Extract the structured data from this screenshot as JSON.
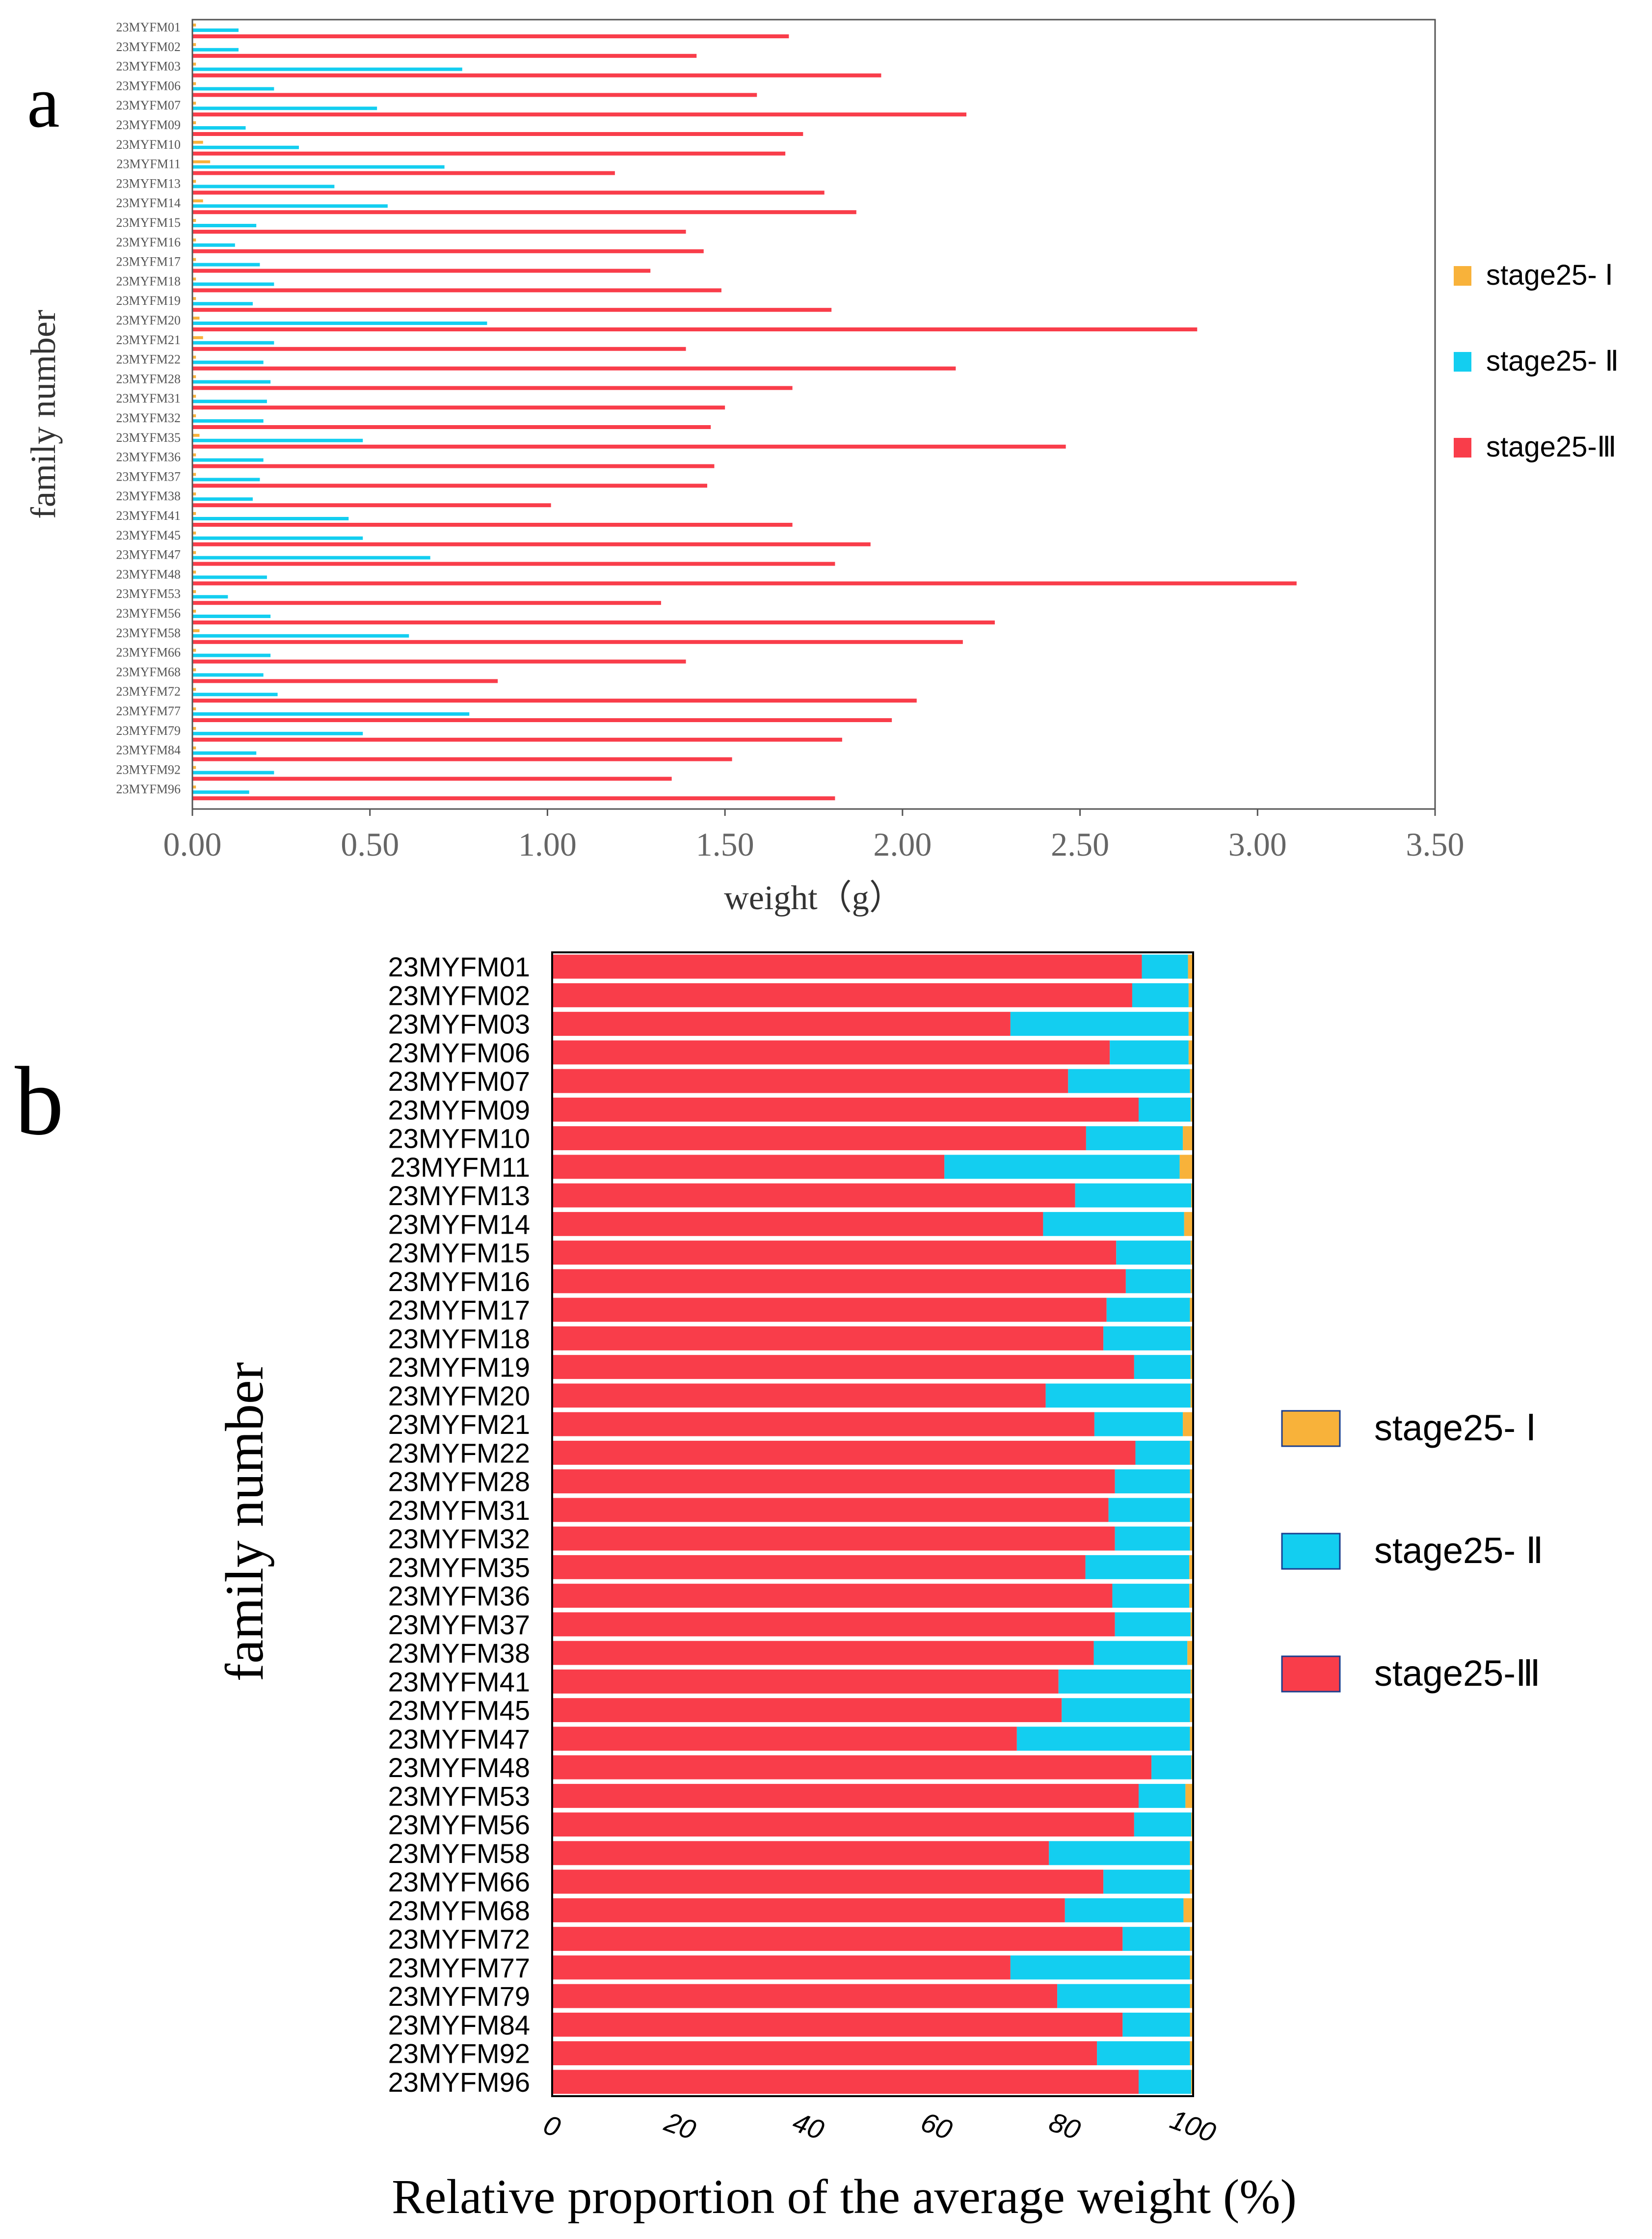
{
  "panel_labels": {
    "a": "a",
    "b": "b"
  },
  "colors": {
    "stage_i": "#F8B23A",
    "stage_ii": "#13CEF0",
    "stage_iii": "#F93D4A",
    "axis": "#000000"
  },
  "chart_data": [
    {
      "type": "bar",
      "orientation": "horizontal",
      "panel": "a",
      "title": "",
      "xlabel": "weight（g）",
      "ylabel": "family number",
      "xlim": [
        0,
        3.5
      ],
      "xticks": [
        "0.00",
        "0.50",
        "1.00",
        "1.50",
        "2.00",
        "2.50",
        "3.00",
        "3.50"
      ],
      "categories": [
        "23MYFM01",
        "23MYFM02",
        "23MYFM03",
        "23MYFM06",
        "23MYFM07",
        "23MYFM09",
        "23MYFM10",
        "23MYFM11",
        "23MYFM13",
        "23MYFM14",
        "23MYFM15",
        "23MYFM16",
        "23MYFM17",
        "23MYFM18",
        "23MYFM19",
        "23MYFM20",
        "23MYFM21",
        "23MYFM22",
        "23MYFM28",
        "23MYFM31",
        "23MYFM32",
        "23MYFM35",
        "23MYFM36",
        "23MYFM37",
        "23MYFM38",
        "23MYFM41",
        "23MYFM45",
        "23MYFM47",
        "23MYFM48",
        "23MYFM53",
        "23MYFM56",
        "23MYFM58",
        "23MYFM66",
        "23MYFM68",
        "23MYFM72",
        "23MYFM77",
        "23MYFM79",
        "23MYFM84",
        "23MYFM92",
        "23MYFM96"
      ],
      "legend_position": "right",
      "series": [
        {
          "name": "stage25- Ⅰ",
          "color": "#F8B23A",
          "values": [
            0.01,
            0.01,
            0.01,
            0.01,
            0.01,
            0.01,
            0.03,
            0.05,
            0.01,
            0.03,
            0.01,
            0.01,
            0.01,
            0.01,
            0.01,
            0.02,
            0.03,
            0.01,
            0.01,
            0.01,
            0.01,
            0.02,
            0.01,
            0.01,
            0.01,
            0.01,
            0.01,
            0.01,
            0.01,
            0.01,
            0.01,
            0.02,
            0.01,
            0.01,
            0.01,
            0.01,
            0.01,
            0.01,
            0.01,
            0.01
          ]
        },
        {
          "name": "stage25- Ⅱ",
          "color": "#13CEF0",
          "values": [
            0.13,
            0.13,
            0.76,
            0.23,
            0.52,
            0.15,
            0.3,
            0.71,
            0.4,
            0.55,
            0.18,
            0.12,
            0.19,
            0.23,
            0.17,
            0.83,
            0.23,
            0.2,
            0.22,
            0.21,
            0.2,
            0.48,
            0.2,
            0.19,
            0.17,
            0.44,
            0.48,
            0.67,
            0.21,
            0.1,
            0.22,
            0.61,
            0.22,
            0.2,
            0.24,
            0.78,
            0.48,
            0.18,
            0.23,
            0.16
          ]
        },
        {
          "name": "stage25-Ⅲ",
          "color": "#F93D4A",
          "values": [
            1.68,
            1.42,
            1.94,
            1.59,
            2.18,
            1.72,
            1.67,
            1.19,
            1.78,
            1.87,
            1.39,
            1.44,
            1.29,
            1.49,
            1.8,
            2.83,
            1.39,
            2.15,
            1.69,
            1.5,
            1.46,
            2.46,
            1.47,
            1.45,
            1.01,
            1.69,
            1.91,
            1.81,
            3.11,
            1.32,
            2.26,
            2.17,
            1.39,
            0.86,
            2.04,
            1.97,
            1.83,
            1.52,
            1.35,
            1.81
          ]
        }
      ]
    },
    {
      "type": "bar",
      "orientation": "horizontal",
      "stacked": true,
      "panel": "b",
      "title": "",
      "xlabel": "Relative proportion of the average weight (%)",
      "ylabel": "family number",
      "xlim": [
        0,
        100
      ],
      "xticks": [
        "0",
        "20",
        "40",
        "60",
        "80",
        "100"
      ],
      "categories": [
        "23MYFM01",
        "23MYFM02",
        "23MYFM03",
        "23MYFM06",
        "23MYFM07",
        "23MYFM09",
        "23MYFM10",
        "23MYFM11",
        "23MYFM13",
        "23MYFM14",
        "23MYFM15",
        "23MYFM16",
        "23MYFM17",
        "23MYFM18",
        "23MYFM19",
        "23MYFM20",
        "23MYFM21",
        "23MYFM22",
        "23MYFM28",
        "23MYFM31",
        "23MYFM32",
        "23MYFM35",
        "23MYFM36",
        "23MYFM37",
        "23MYFM38",
        "23MYFM41",
        "23MYFM45",
        "23MYFM47",
        "23MYFM48",
        "23MYFM53",
        "23MYFM56",
        "23MYFM58",
        "23MYFM66",
        "23MYFM68",
        "23MYFM72",
        "23MYFM77",
        "23MYFM79",
        "23MYFM84",
        "23MYFM92",
        "23MYFM96"
      ],
      "legend_position": "right",
      "series": [
        {
          "name": "stage25-Ⅲ",
          "color": "#F93D4A",
          "values": [
            92,
            90.5,
            71.5,
            87,
            80.5,
            91.5,
            83.3,
            61.2,
            81.6,
            76.6,
            88,
            89.5,
            86.5,
            86,
            90.8,
            77,
            84.6,
            91,
            87.8,
            86.8,
            87.8,
            83.2,
            87.4,
            87.8,
            84.5,
            79,
            79.5,
            72.5,
            93.5,
            91.5,
            90.8,
            77.5,
            86,
            80,
            89,
            71.5,
            78.8,
            89,
            85,
            91.5
          ]
        },
        {
          "name": "stage25- Ⅱ",
          "color": "#13CEF0",
          "values": [
            7.2,
            8.8,
            27.8,
            12.3,
            19,
            8.1,
            15.1,
            36.7,
            18.1,
            22,
            11.6,
            10.1,
            13,
            13.6,
            8.8,
            22.6,
            13.8,
            8.5,
            11.7,
            12.7,
            11.7,
            16.2,
            12,
            11.8,
            14.6,
            20.6,
            20,
            27,
            6.2,
            7.3,
            8.9,
            22,
            13.5,
            18.5,
            10.5,
            28,
            20.7,
            10.5,
            14.5,
            8.2
          ]
        },
        {
          "name": "stage25- Ⅰ",
          "color": "#F8B23A",
          "values": [
            0.8,
            0.7,
            0.7,
            0.7,
            0.5,
            0.4,
            1.6,
            2.1,
            0.3,
            1.4,
            0.4,
            0.4,
            0.5,
            0.4,
            0.4,
            0.4,
            1.6,
            0.5,
            0.5,
            0.5,
            0.5,
            0.6,
            0.6,
            0.4,
            0.9,
            0.4,
            0.5,
            0.5,
            0.3,
            1.2,
            0.3,
            0.5,
            0.5,
            1.5,
            0.5,
            0.5,
            0.5,
            0.5,
            0.5,
            0.3
          ]
        }
      ]
    }
  ]
}
